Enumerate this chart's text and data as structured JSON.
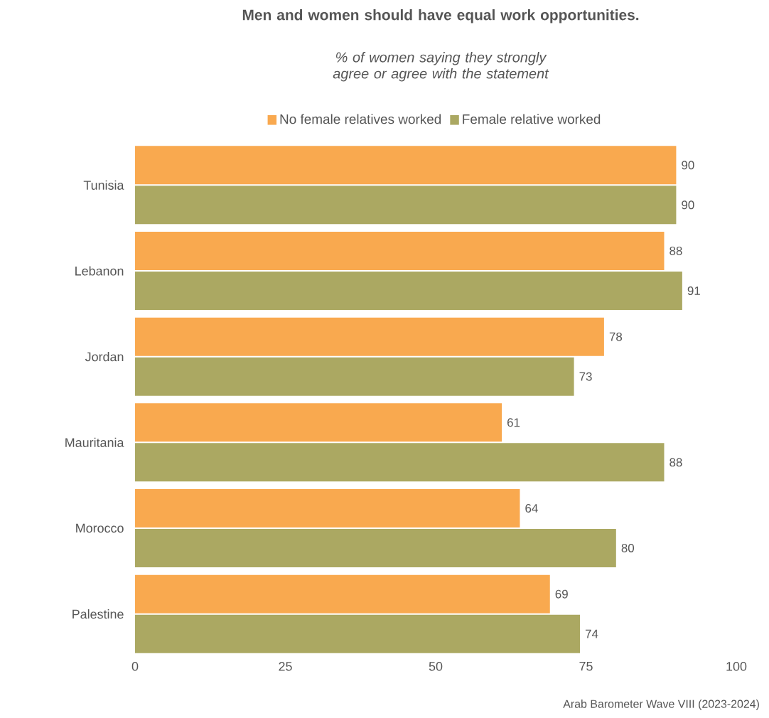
{
  "chart_data": {
    "type": "bar",
    "orientation": "horizontal",
    "title": "Men and women should have equal work opportunities.",
    "subtitle": "% of women saying they strongly agree or agree with the statement",
    "categories": [
      "Tunisia",
      "Lebanon",
      "Jordan",
      "Mauritania",
      "Morocco",
      "Palestine"
    ],
    "series": [
      {
        "name": "No female relatives worked",
        "color": "#f9a94f",
        "values": [
          90,
          88,
          78,
          61,
          64,
          69
        ]
      },
      {
        "name": "Female relative worked",
        "color": "#aba862",
        "values": [
          90,
          91,
          73,
          88,
          80,
          74
        ]
      }
    ],
    "xlim": [
      0,
      100
    ],
    "xticks": [
      0,
      25,
      50,
      75,
      100
    ],
    "data_labels": true,
    "legend": "top",
    "annotations": [
      "Arab Barometer Wave VIII (2023-2024)"
    ]
  }
}
